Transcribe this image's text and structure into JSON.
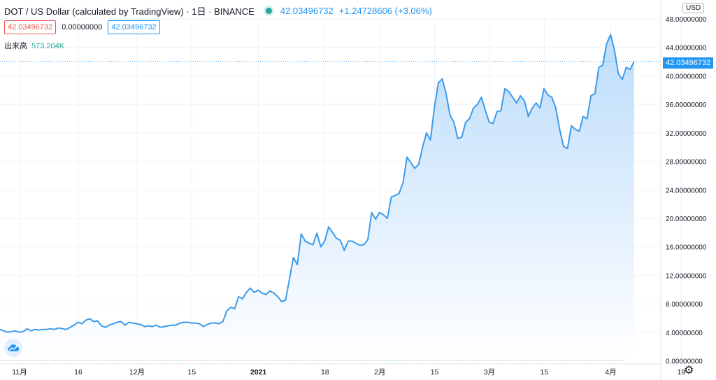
{
  "header": {
    "title": "DOT / US Dollar (calculated by TradingView) · 1日 · BINANCE",
    "price": "42.03496732",
    "change": "+1.24728606 (+3.06%)"
  },
  "indicators": {
    "left_value": "42.03496732",
    "middle_value": "0.00000000",
    "right_value": "42.03496732"
  },
  "volume": {
    "label": "出来高",
    "value": "573.204K"
  },
  "currency": "USD",
  "last_price_tag": "42.03496732",
  "colors": {
    "line": "#3d9be9",
    "area_top": "#bcdcfb",
    "area_bottom": "#ffffff",
    "vol_up": "#7fcabe",
    "vol_down": "#f4a5a3",
    "accent": "#2196f3"
  },
  "chart_data": {
    "type": "area",
    "title": "DOT / US Dollar (calculated by TradingView) · 1日 · BINANCE",
    "xlabel": "",
    "ylabel": "",
    "ylim": [
      0,
      48
    ],
    "y_ticks": [
      "0.00000000",
      "4.00000000",
      "8.00000000",
      "12.00000000",
      "16.00000000",
      "20.00000000",
      "24.00000000",
      "28.00000000",
      "32.00000000",
      "36.00000000",
      "40.00000000",
      "44.00000000",
      "48.00000000"
    ],
    "y_tick_values": [
      0,
      4,
      8,
      12,
      16,
      20,
      24,
      28,
      32,
      36,
      40,
      44,
      48
    ],
    "x_ticks": [
      {
        "label": "11月",
        "day": 0
      },
      {
        "label": "16",
        "day": 15
      },
      {
        "label": "12月",
        "day": 30
      },
      {
        "label": "15",
        "day": 44
      },
      {
        "label": "2021",
        "day": 61
      },
      {
        "label": "18",
        "day": 78
      },
      {
        "label": "2月",
        "day": 92
      },
      {
        "label": "15",
        "day": 106
      },
      {
        "label": "3月",
        "day": 120
      },
      {
        "label": "15",
        "day": 134
      },
      {
        "label": "4月",
        "day": 151
      },
      {
        "label": "19",
        "day": 169
      }
    ],
    "series": [
      {
        "values": [
          4.6,
          4.4,
          4.2,
          4.0,
          4.1,
          4.2,
          4.0,
          4.1,
          4.5,
          4.2,
          4.4,
          4.3,
          4.4,
          4.4,
          4.5,
          4.4,
          4.6,
          4.5,
          4.4,
          4.7,
          5.0,
          5.4,
          5.2,
          5.7,
          5.9,
          5.5,
          5.6,
          4.9,
          4.7,
          5.0,
          5.2,
          5.4,
          5.5,
          5.0,
          5.4,
          5.3,
          5.2,
          5.1,
          4.8,
          4.9,
          4.8,
          5.0,
          4.7,
          4.8,
          4.9,
          5.0,
          5.0,
          5.3,
          5.4,
          5.4,
          5.3,
          5.3,
          5.2,
          4.8,
          5.1,
          5.3,
          5.3,
          5.2,
          5.5,
          7.0,
          7.5,
          7.3,
          9.0,
          8.7,
          9.6,
          10.2,
          9.6,
          9.9,
          9.5,
          9.3,
          9.8,
          9.5,
          9.0,
          8.3,
          8.5,
          11.5,
          14.5,
          13.5,
          17.8,
          16.8,
          16.5,
          16.3,
          17.9,
          16.0,
          16.8,
          18.8,
          18.0,
          17.2,
          16.9,
          15.5,
          16.8,
          16.8,
          16.5,
          16.2,
          16.3,
          17.0,
          20.8,
          19.9,
          20.8,
          20.5,
          20.0,
          23.0,
          23.2,
          23.5,
          25.0,
          28.6,
          27.8,
          27.0,
          27.6,
          30.0,
          32.0,
          31.0,
          35.5,
          39.0,
          39.6,
          37.5,
          34.5,
          33.5,
          31.2,
          31.4,
          33.5,
          34.0,
          35.5,
          36.0,
          37.0,
          35.2,
          33.5,
          33.3,
          35.0,
          35.1,
          38.2,
          37.8,
          37.0,
          36.2,
          37.2,
          36.5,
          34.3,
          35.5,
          36.2,
          35.5,
          38.2,
          37.3,
          37.0,
          35.5,
          32.5,
          30.1,
          29.8,
          33.0,
          32.5,
          32.2,
          34.3,
          34.0,
          37.2,
          37.5,
          41.2,
          41.5,
          44.5,
          45.8,
          43.6,
          40.3,
          39.5,
          41.2,
          40.9,
          42.03
        ]
      }
    ],
    "volume_ylim": [
      0,
      12
    ],
    "volume": [
      {
        "v": 1.1,
        "up": false
      },
      {
        "v": 0.8,
        "up": false
      },
      {
        "v": 0.5,
        "up": false
      },
      {
        "v": 0.7,
        "up": true
      },
      {
        "v": 0.9,
        "up": true
      },
      {
        "v": 0.6,
        "up": false
      },
      {
        "v": 0.8,
        "up": true
      },
      {
        "v": 0.5,
        "up": false
      },
      {
        "v": 0.9,
        "up": true
      },
      {
        "v": 1.3,
        "up": false
      },
      {
        "v": 0.7,
        "up": true
      },
      {
        "v": 0.6,
        "up": false
      },
      {
        "v": 0.8,
        "up": true
      },
      {
        "v": 0.9,
        "up": true
      },
      {
        "v": 0.7,
        "up": false
      },
      {
        "v": 1.2,
        "up": true
      },
      {
        "v": 0.5,
        "up": false
      },
      {
        "v": 1.8,
        "up": true
      },
      {
        "v": 1.1,
        "up": false
      },
      {
        "v": 0.9,
        "up": true
      },
      {
        "v": 2.1,
        "up": true
      },
      {
        "v": 1.5,
        "up": false
      },
      {
        "v": 2.8,
        "up": true
      },
      {
        "v": 1.7,
        "up": false
      },
      {
        "v": 2.2,
        "up": true
      },
      {
        "v": 1.4,
        "up": false
      },
      {
        "v": 3.1,
        "up": false
      },
      {
        "v": 2.0,
        "up": false
      },
      {
        "v": 1.5,
        "up": true
      },
      {
        "v": 1.4,
        "up": false
      },
      {
        "v": 1.8,
        "up": true
      },
      {
        "v": 1.2,
        "up": false
      },
      {
        "v": 1.5,
        "up": true
      },
      {
        "v": 1.3,
        "up": false
      },
      {
        "v": 0.9,
        "up": true
      },
      {
        "v": 1.0,
        "up": false
      },
      {
        "v": 0.8,
        "up": false
      },
      {
        "v": 0.7,
        "up": true
      },
      {
        "v": 0.9,
        "up": false
      },
      {
        "v": 0.8,
        "up": false
      },
      {
        "v": 0.6,
        "up": true
      },
      {
        "v": 0.7,
        "up": false
      },
      {
        "v": 0.6,
        "up": false
      },
      {
        "v": 0.8,
        "up": true
      },
      {
        "v": 1.2,
        "up": true
      },
      {
        "v": 0.7,
        "up": false
      },
      {
        "v": 1.5,
        "up": true
      },
      {
        "v": 1.8,
        "up": true
      },
      {
        "v": 1.0,
        "up": false
      },
      {
        "v": 1.1,
        "up": false
      },
      {
        "v": 1.3,
        "up": false
      },
      {
        "v": 1.6,
        "up": true
      },
      {
        "v": 1.2,
        "up": false
      },
      {
        "v": 1.0,
        "up": false
      },
      {
        "v": 1.5,
        "up": true
      },
      {
        "v": 1.3,
        "up": false
      },
      {
        "v": 1.2,
        "up": false
      },
      {
        "v": 1.0,
        "up": true
      },
      {
        "v": 1.8,
        "up": false
      },
      {
        "v": 4.6,
        "up": true
      },
      {
        "v": 6.5,
        "up": true
      },
      {
        "v": 5.8,
        "up": false
      },
      {
        "v": 7.2,
        "up": true
      },
      {
        "v": 6.0,
        "up": false
      },
      {
        "v": 8.0,
        "up": true
      },
      {
        "v": 7.5,
        "up": false
      },
      {
        "v": 6.8,
        "up": true
      },
      {
        "v": 6.2,
        "up": false
      },
      {
        "v": 3.5,
        "up": true
      },
      {
        "v": 4.8,
        "up": false
      },
      {
        "v": 3.2,
        "up": false
      },
      {
        "v": 3.8,
        "up": true
      },
      {
        "v": 2.9,
        "up": false
      },
      {
        "v": 2.2,
        "up": false
      },
      {
        "v": 4.5,
        "up": true
      },
      {
        "v": 9.2,
        "up": true
      },
      {
        "v": 8.0,
        "up": false
      },
      {
        "v": 12.5,
        "up": true
      },
      {
        "v": 7.8,
        "up": false
      },
      {
        "v": 5.4,
        "up": false
      },
      {
        "v": 4.5,
        "up": false
      },
      {
        "v": 5.5,
        "up": true
      },
      {
        "v": 4.8,
        "up": false
      },
      {
        "v": 5.2,
        "up": true
      },
      {
        "v": 4.3,
        "up": false
      },
      {
        "v": 3.2,
        "up": false
      },
      {
        "v": 2.5,
        "up": false
      },
      {
        "v": 2.8,
        "up": false
      },
      {
        "v": 4.0,
        "up": false
      },
      {
        "v": 2.4,
        "up": true
      },
      {
        "v": 2.0,
        "up": false
      },
      {
        "v": 1.6,
        "up": false
      },
      {
        "v": 2.0,
        "up": true
      },
      {
        "v": 2.0,
        "up": false
      },
      {
        "v": 4.1,
        "up": true
      },
      {
        "v": 3.8,
        "up": false
      },
      {
        "v": 3.2,
        "up": true
      },
      {
        "v": 2.4,
        "up": false
      },
      {
        "v": 3.0,
        "up": false
      },
      {
        "v": 6.0,
        "up": true
      },
      {
        "v": 4.2,
        "up": true
      },
      {
        "v": 4.5,
        "up": true
      },
      {
        "v": 4.8,
        "up": true
      },
      {
        "v": 5.8,
        "up": true
      },
      {
        "v": 5.4,
        "up": false
      },
      {
        "v": 4.5,
        "up": true
      },
      {
        "v": 3.2,
        "up": false
      },
      {
        "v": 5.8,
        "up": true
      },
      {
        "v": 6.2,
        "up": true
      },
      {
        "v": 4.9,
        "up": true
      },
      {
        "v": 3.4,
        "up": false
      },
      {
        "v": 2.5,
        "up": false
      },
      {
        "v": 4.8,
        "up": true
      },
      {
        "v": 6.2,
        "up": true
      },
      {
        "v": 5.0,
        "up": false
      },
      {
        "v": 3.5,
        "up": false
      },
      {
        "v": 2.6,
        "up": false
      },
      {
        "v": 1.9,
        "up": false
      },
      {
        "v": 2.2,
        "up": true
      },
      {
        "v": 3.0,
        "up": true
      },
      {
        "v": 2.3,
        "up": false
      },
      {
        "v": 2.0,
        "up": false
      },
      {
        "v": 1.8,
        "up": true
      },
      {
        "v": 1.2,
        "up": false
      },
      {
        "v": 1.7,
        "up": true
      },
      {
        "v": 2.0,
        "up": false
      },
      {
        "v": 1.5,
        "up": false
      },
      {
        "v": 1.3,
        "up": true
      },
      {
        "v": 1.9,
        "up": true
      },
      {
        "v": 1.2,
        "up": false
      },
      {
        "v": 1.5,
        "up": false
      },
      {
        "v": 1.0,
        "up": true
      },
      {
        "v": 1.4,
        "up": false
      },
      {
        "v": 1.2,
        "up": false
      },
      {
        "v": 1.6,
        "up": true
      },
      {
        "v": 1.1,
        "up": false
      },
      {
        "v": 1.3,
        "up": true
      },
      {
        "v": 1.5,
        "up": false
      },
      {
        "v": 1.4,
        "up": false
      },
      {
        "v": 1.2,
        "up": true
      },
      {
        "v": 1.0,
        "up": false
      },
      {
        "v": 1.2,
        "up": true
      },
      {
        "v": 1.4,
        "up": false
      },
      {
        "v": 1.3,
        "up": false
      },
      {
        "v": 1.5,
        "up": false
      },
      {
        "v": 1.9,
        "up": false
      },
      {
        "v": 1.1,
        "up": true
      },
      {
        "v": 2.2,
        "up": false
      },
      {
        "v": 1.0,
        "up": true
      },
      {
        "v": 1.2,
        "up": false
      },
      {
        "v": 2.6,
        "up": true
      },
      {
        "v": 1.5,
        "up": true
      },
      {
        "v": 1.8,
        "up": false
      },
      {
        "v": 3.3,
        "up": true
      },
      {
        "v": 1.2,
        "up": false
      },
      {
        "v": 1.4,
        "up": true
      },
      {
        "v": 1.6,
        "up": false
      },
      {
        "v": 2.0,
        "up": false
      },
      {
        "v": 1.3,
        "up": true
      },
      {
        "v": 1.0,
        "up": false
      },
      {
        "v": 0.6,
        "up": true
      }
    ]
  }
}
